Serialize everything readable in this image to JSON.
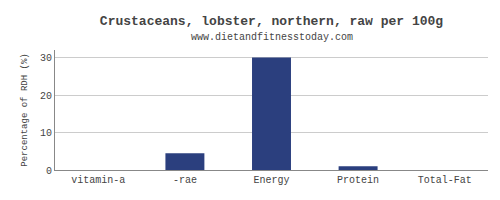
{
  "chart_data": {
    "type": "bar",
    "title": "Crustaceans, lobster, northern, raw per 100g",
    "subtitle": "www.dietandfitnesstoday.com",
    "ylabel": "Percentage of RDH (%)",
    "categories": [
      "vitamin-a",
      "-rae",
      "Energy",
      "Protein",
      "Total-Fat"
    ],
    "values": [
      0,
      4.5,
      30,
      1,
      0
    ],
    "color": "#2B3F7E",
    "ylim": [
      0,
      32
    ],
    "yticks": [
      0,
      10,
      20,
      30
    ],
    "grid": true
  }
}
